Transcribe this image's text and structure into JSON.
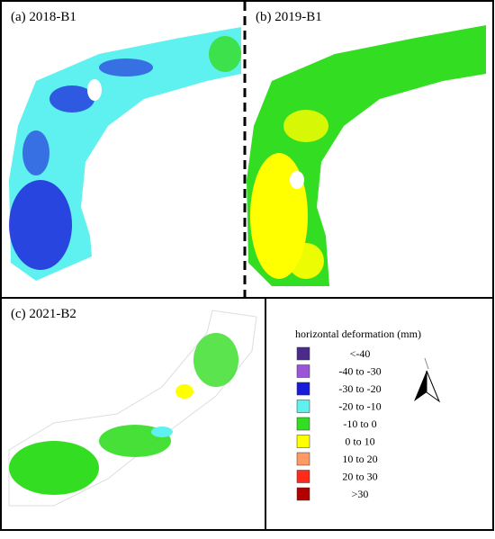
{
  "panels": [
    {
      "label": "(a) 2018-B1"
    },
    {
      "label": "(b) 2019-B1"
    },
    {
      "label": "(c) 2021-B2"
    }
  ],
  "legend": {
    "title": "horizontal deformation (mm)",
    "items": [
      {
        "label": "<-40",
        "color": "#4b2a8c"
      },
      {
        "label": "-40 to -30",
        "color": "#9b55d6"
      },
      {
        "label": "-30 to -20",
        "color": "#1a1adb"
      },
      {
        "label": "-20 to -10",
        "color": "#5ff0f0"
      },
      {
        "label": "-10 to 0",
        "color": "#33dd22"
      },
      {
        "label": "0 to 10",
        "color": "#ffff00"
      },
      {
        "label": "10 to 20",
        "color": "#ff9966"
      },
      {
        "label": "20 to 30",
        "color": "#ff2a1a"
      },
      {
        "label": ">30",
        "color": "#b00000"
      }
    ]
  }
}
